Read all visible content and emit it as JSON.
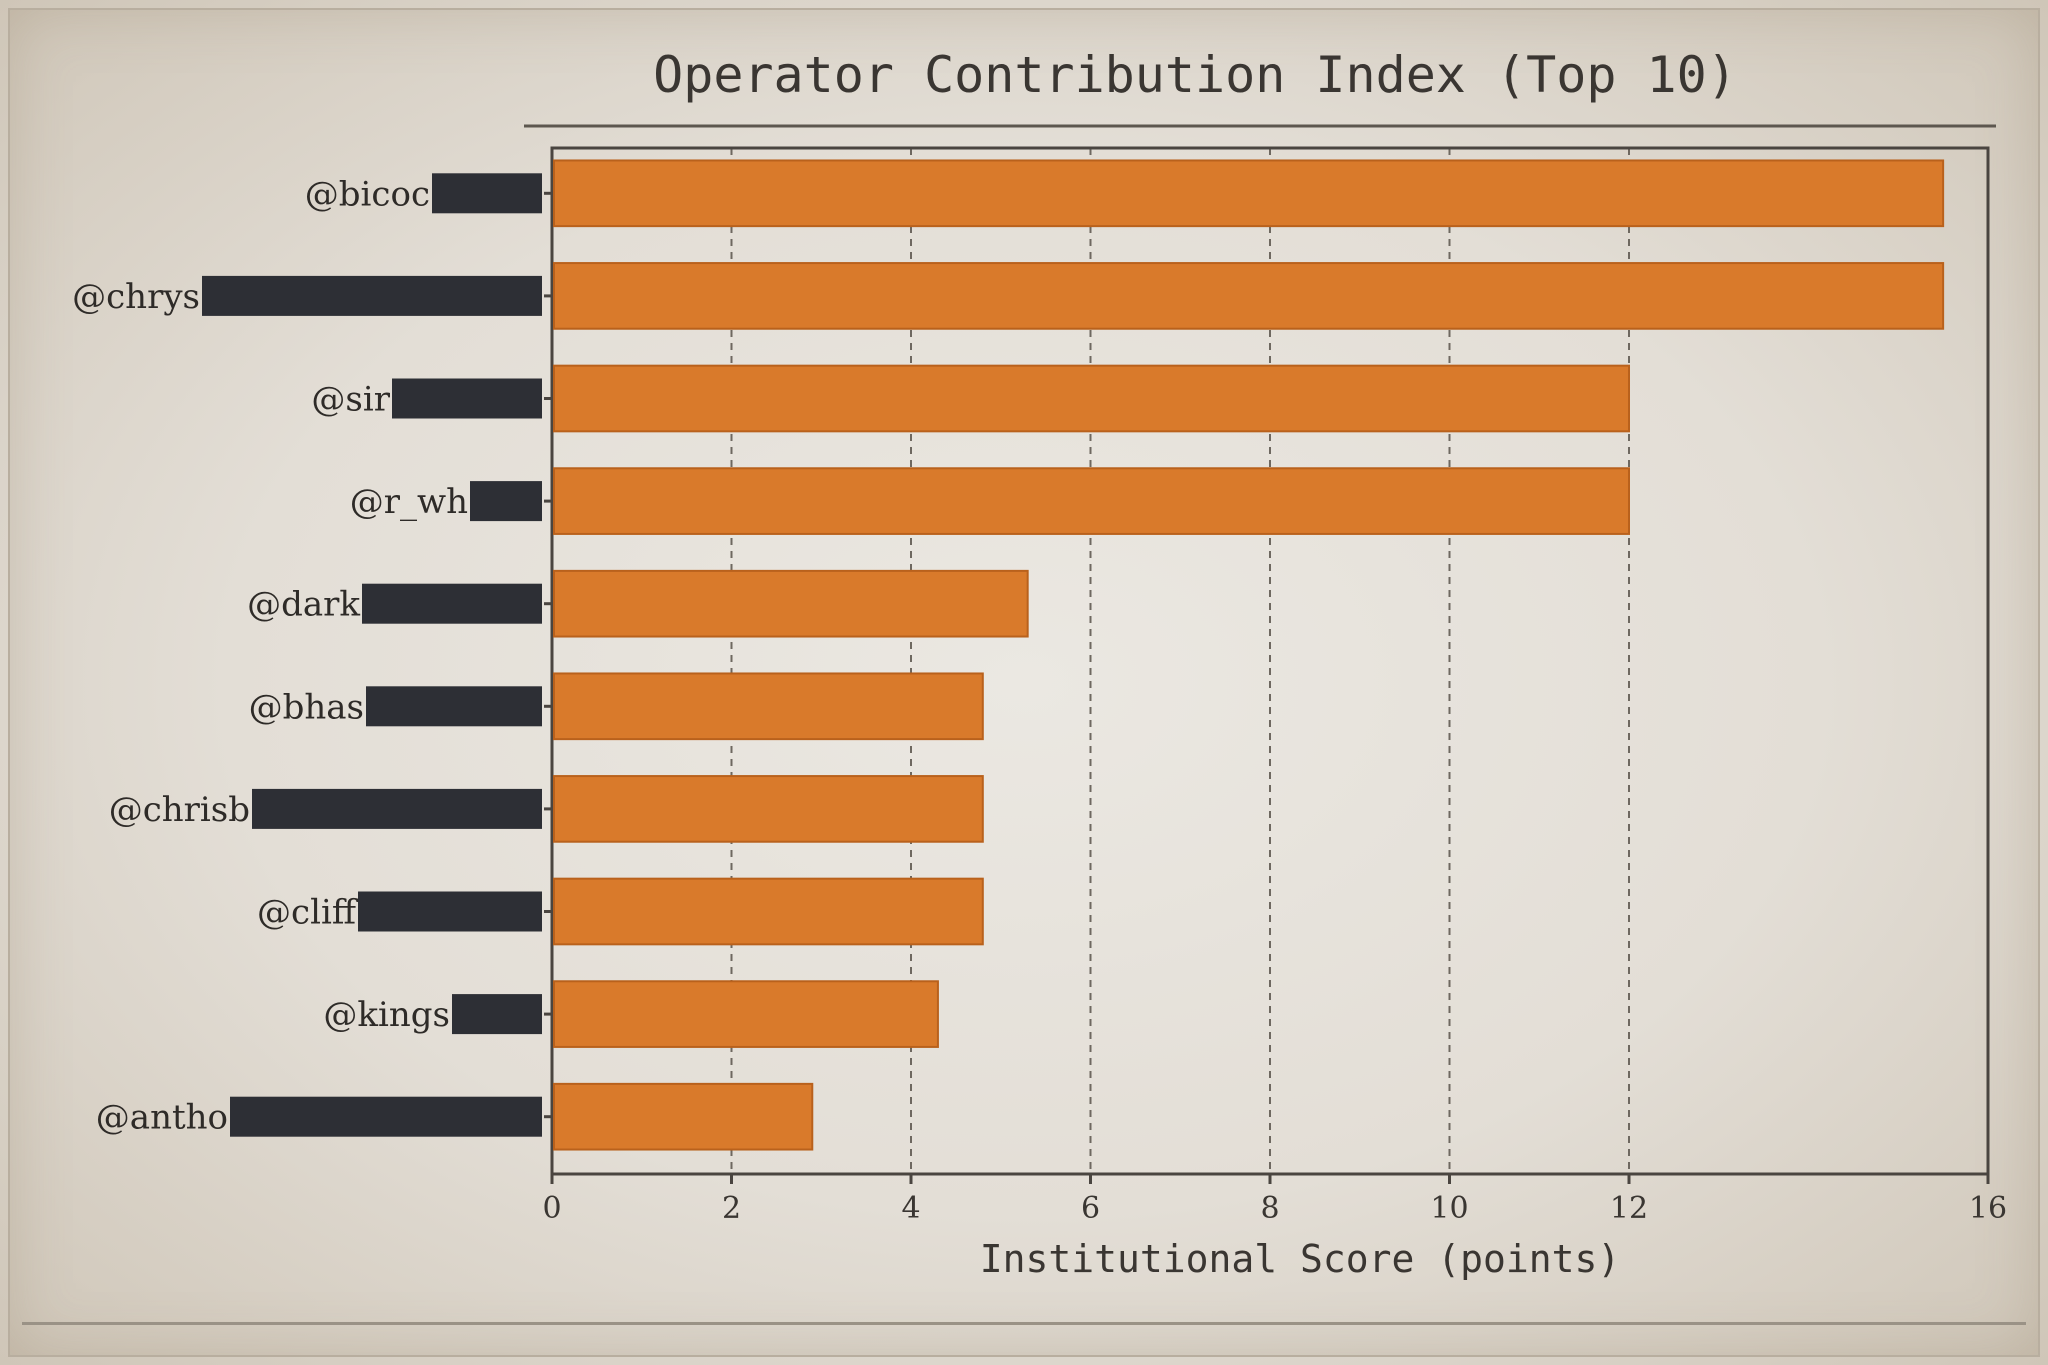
{
  "colors": {
    "bar": "#d97a2b",
    "bar_edge": "#b9611c",
    "redaction": "#2d2f35",
    "axis": "#4a4540",
    "grid": "#6e6860"
  },
  "chart_data": {
    "type": "bar",
    "orientation": "horizontal",
    "title": "Operator Contribution Index (Top 10)",
    "xlabel": "Institutional Score (points)",
    "ylabel": "",
    "xlim": [
      0,
      16
    ],
    "xticks": [
      0,
      2,
      4,
      6,
      8,
      10,
      12,
      16
    ],
    "grid": "vertical dashed",
    "categories": [
      "@bicoc",
      "@chrys",
      "@sir",
      "@r_wh",
      "@dark",
      "@bhas",
      "@chrisb",
      "@cliff",
      "@kings",
      "@antho"
    ],
    "values": [
      15.5,
      15.5,
      12.0,
      12.0,
      5.3,
      4.8,
      4.8,
      4.8,
      4.3,
      2.9
    ],
    "redacted": true
  }
}
